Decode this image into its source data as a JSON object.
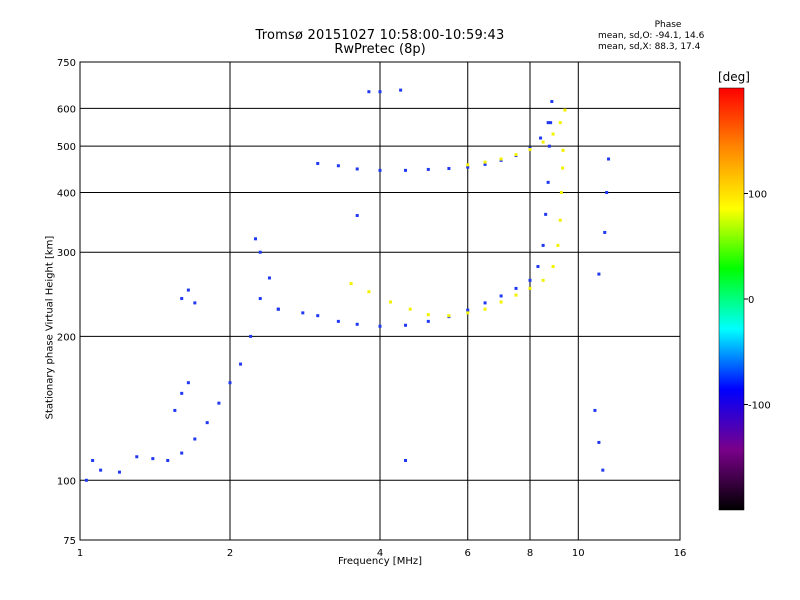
{
  "title": "Tromsø 20151027 10:58:00-10:59:43",
  "subtitle": "RwPretec (8p)",
  "phase_box": {
    "title": "Phase",
    "line_o": "mean, sd,O: -94.1, 14.6",
    "line_x": "mean, sd,X: 88.3, 17.4"
  },
  "colorbar": {
    "title": "[deg]",
    "ticks": [
      "100",
      "0",
      "-100"
    ],
    "tick_values": [
      100,
      0,
      -100
    ],
    "range": [
      -200,
      200
    ],
    "stops": [
      "#000000",
      "#7a008a",
      "#0000ff",
      "#00ffff",
      "#00ff00",
      "#ffff00",
      "#ff8800",
      "#ff0000"
    ]
  },
  "chart_data": {
    "type": "scatter",
    "xlabel": "Frequency [MHz]",
    "ylabel": "Stationary phase Virtual Height [km]",
    "x_scale": "log",
    "y_scale": "log",
    "xlim": [
      1,
      16
    ],
    "ylim": [
      75,
      750
    ],
    "x_ticks": [
      1,
      2,
      4,
      6,
      8,
      10,
      16
    ],
    "x_tick_labels": [
      "1",
      "2",
      "4",
      "6",
      "8",
      "10",
      "16"
    ],
    "y_ticks": [
      75,
      100,
      200,
      300,
      400,
      500,
      600,
      750
    ],
    "y_tick_labels": [
      "75",
      "100",
      "200",
      "300",
      "400",
      "500",
      "600",
      "750"
    ],
    "grid": true,
    "color_map": {
      "blue": "#1f38f0",
      "yellow": "#f2f200"
    },
    "series": [
      {
        "color": "blue",
        "points": [
          [
            1.03,
            100
          ],
          [
            1.06,
            110
          ],
          [
            1.1,
            105
          ],
          [
            1.2,
            104
          ],
          [
            1.3,
            112
          ],
          [
            1.4,
            111
          ],
          [
            1.5,
            110
          ],
          [
            1.6,
            114
          ],
          [
            1.7,
            122
          ],
          [
            1.8,
            132
          ],
          [
            1.9,
            145
          ],
          [
            2.0,
            160
          ],
          [
            2.1,
            175
          ],
          [
            2.2,
            200
          ],
          [
            2.3,
            240
          ],
          [
            2.4,
            265
          ],
          [
            2.5,
            228
          ]
        ]
      },
      {
        "color": "blue",
        "points": [
          [
            1.55,
            140
          ],
          [
            1.6,
            152
          ],
          [
            1.65,
            160
          ],
          [
            1.6,
            240
          ],
          [
            1.65,
            250
          ],
          [
            1.7,
            235
          ],
          [
            2.25,
            320
          ],
          [
            2.3,
            300
          ]
        ]
      },
      {
        "color": "blue",
        "points": [
          [
            2.5,
            228
          ],
          [
            2.8,
            224
          ],
          [
            3.0,
            221
          ],
          [
            3.3,
            215
          ],
          [
            3.6,
            212
          ],
          [
            4.0,
            210
          ],
          [
            4.5,
            211
          ],
          [
            5.0,
            215
          ],
          [
            5.5,
            220
          ],
          [
            6.0,
            227
          ],
          [
            6.5,
            235
          ],
          [
            7.0,
            243
          ],
          [
            7.5,
            252
          ],
          [
            8.0,
            262
          ],
          [
            8.3,
            280
          ],
          [
            8.5,
            310
          ],
          [
            8.6,
            360
          ],
          [
            8.7,
            420
          ],
          [
            8.75,
            500
          ],
          [
            8.8,
            560
          ],
          [
            8.85,
            620
          ]
        ]
      },
      {
        "color": "yellow",
        "points": [
          [
            3.5,
            258
          ],
          [
            3.8,
            248
          ],
          [
            4.2,
            236
          ],
          [
            4.6,
            228
          ],
          [
            5.0,
            222
          ],
          [
            5.5,
            221
          ],
          [
            6.0,
            224
          ],
          [
            6.5,
            228
          ],
          [
            7.0,
            236
          ],
          [
            7.5,
            244
          ],
          [
            8.0,
            252
          ],
          [
            8.5,
            262
          ],
          [
            8.9,
            280
          ],
          [
            9.1,
            310
          ],
          [
            9.2,
            350
          ],
          [
            9.25,
            400
          ],
          [
            9.3,
            450
          ],
          [
            9.32,
            490
          ]
        ]
      },
      {
        "color": "blue",
        "points": [
          [
            3.0,
            460
          ],
          [
            3.3,
            455
          ],
          [
            3.6,
            448
          ],
          [
            4.0,
            445
          ],
          [
            4.5,
            445
          ],
          [
            5.0,
            447
          ],
          [
            5.5,
            449
          ],
          [
            6.0,
            452
          ],
          [
            6.5,
            458
          ],
          [
            7.0,
            467
          ],
          [
            7.5,
            478
          ],
          [
            8.0,
            495
          ],
          [
            8.4,
            520
          ],
          [
            8.7,
            560
          ]
        ]
      },
      {
        "color": "yellow",
        "points": [
          [
            6.0,
            457
          ],
          [
            6.5,
            463
          ],
          [
            7.0,
            470
          ],
          [
            7.5,
            480
          ],
          [
            8.0,
            492
          ],
          [
            8.5,
            510
          ],
          [
            8.9,
            530
          ],
          [
            9.2,
            560
          ],
          [
            9.4,
            595
          ]
        ]
      },
      {
        "color": "blue",
        "points": [
          [
            3.8,
            650
          ],
          [
            4.0,
            650
          ],
          [
            4.4,
            655
          ],
          [
            3.6,
            358
          ],
          [
            4.5,
            110
          ],
          [
            10.8,
            140
          ],
          [
            11.0,
            120
          ],
          [
            11.2,
            105
          ],
          [
            11.0,
            270
          ],
          [
            11.3,
            330
          ],
          [
            11.4,
            400
          ],
          [
            11.5,
            470
          ]
        ]
      }
    ]
  }
}
